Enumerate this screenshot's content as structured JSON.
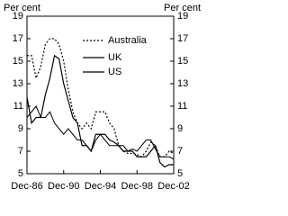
{
  "chart_data": {
    "type": "line",
    "y_label_left": "Per cent",
    "y_label_right": "Per cent",
    "categories": [
      "Dec-86",
      null,
      null,
      null,
      null,
      null,
      null,
      null,
      "Dec-90",
      null,
      null,
      null,
      null,
      null,
      null,
      null,
      "Dec-94",
      null,
      null,
      null,
      null,
      null,
      null,
      null,
      "Dec-98",
      null,
      null,
      null,
      null,
      null,
      null,
      null,
      "Dec-02"
    ],
    "series": [
      {
        "name": "Australia",
        "color": "#000000",
        "dash": "dotted",
        "values": [
          15.5,
          15.5,
          13.5,
          14.5,
          16.5,
          17,
          17,
          16.5,
          15,
          12.5,
          10.5,
          9.5,
          9,
          9.5,
          9,
          10.5,
          10.5,
          10.5,
          9.5,
          9,
          7.5,
          7,
          6.8,
          6.8,
          6.7,
          6.5,
          7,
          7.8,
          7.5,
          6.5,
          6.5,
          7,
          6.8
        ]
      },
      {
        "name": "UK",
        "color": "#000000",
        "dash": "solid",
        "values": [
          11.8,
          9.5,
          10,
          10,
          12,
          13.5,
          15.5,
          15.2,
          13,
          11.5,
          10,
          9.5,
          7.5,
          7.5,
          7,
          8.5,
          8.5,
          8.5,
          8,
          7.8,
          7.5,
          7,
          7,
          7,
          6.5,
          6.5,
          6.5,
          7,
          7.5,
          6,
          5.6,
          5.8,
          5.8
        ]
      },
      {
        "name": "US",
        "color": "#000000",
        "dash": "solid",
        "values": [
          10,
          10.5,
          11,
          10,
          10,
          10.5,
          9.5,
          9,
          8.5,
          9,
          8.5,
          8,
          8,
          7.5,
          7,
          8,
          8.5,
          8,
          7.5,
          7.5,
          7.5,
          7.5,
          7,
          7.2,
          7,
          7.5,
          8,
          8,
          7.2,
          6.5,
          6.5,
          6.5,
          6.3
        ]
      }
    ],
    "ylim": [
      5,
      19
    ],
    "yticks": [
      5,
      7,
      9,
      11,
      13,
      15,
      17,
      19
    ],
    "y2lim": [
      5,
      19
    ],
    "y2ticks": [
      5,
      7,
      9,
      11,
      13,
      15,
      17,
      19
    ],
    "grid": false
  }
}
